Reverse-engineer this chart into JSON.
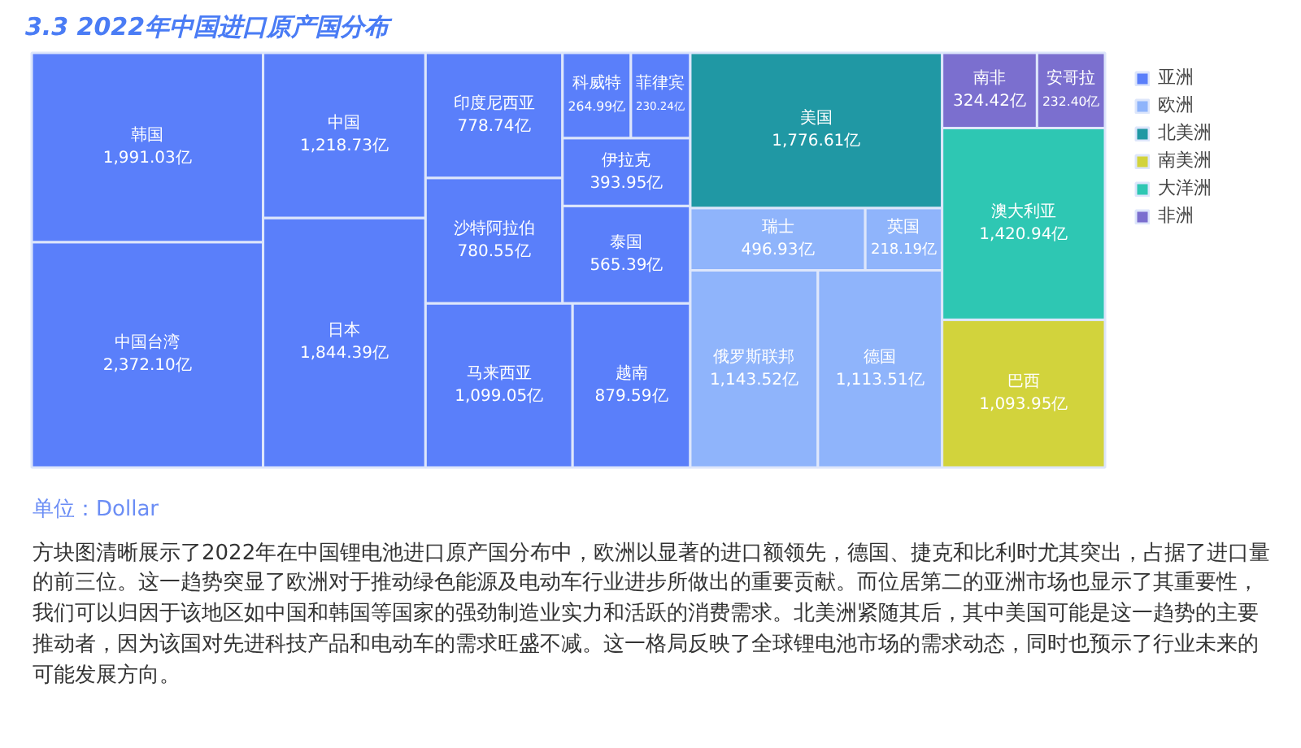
{
  "chart_data": {
    "type": "other",
    "title": "3.3 2022年中国进口原产国分布",
    "legend": "right",
    "categories": [
      "中国台湾",
      "韩国",
      "日本",
      "中国",
      "马来西亚",
      "越南",
      "沙特阿拉伯",
      "印度尼西亚",
      "泰国",
      "伊拉克",
      "科威特",
      "菲律宾",
      "俄罗斯联邦",
      "德国",
      "瑞士",
      "英国",
      "美国",
      "巴西",
      "澳大利亚",
      "南非",
      "安哥拉"
    ],
    "series": [
      {
        "name": "亚洲",
        "color": "#5a7ffa",
        "values": [
          2372.1,
          1991.03,
          1844.39,
          1218.73,
          1099.05,
          879.59,
          780.55,
          778.74,
          565.39,
          393.95,
          264.99,
          230.24,
          null,
          null,
          null,
          null,
          null,
          null,
          null,
          null,
          null
        ],
        "value_labels": [
          "2,372.10亿",
          "1,991.03亿",
          "1,844.39亿",
          "1,218.73亿",
          "1,099.05亿",
          "879.59亿",
          "780.55亿",
          "778.74亿",
          "565.39亿",
          "393.95亿",
          "264.99亿",
          "230.24亿",
          null,
          null,
          null,
          null,
          null,
          null,
          null,
          null,
          null
        ]
      },
      {
        "name": "欧洲",
        "color": "#8fb4fb",
        "values": [
          null,
          null,
          null,
          null,
          null,
          null,
          null,
          null,
          null,
          null,
          null,
          null,
          1143.52,
          1113.51,
          496.93,
          218.19,
          null,
          null,
          null,
          null,
          null
        ],
        "value_labels": [
          null,
          null,
          null,
          null,
          null,
          null,
          null,
          null,
          null,
          null,
          null,
          null,
          "1,143.52亿",
          "1,113.51亿",
          "496.93亿",
          "218.19亿",
          null,
          null,
          null,
          null,
          null
        ]
      },
      {
        "name": "北美洲",
        "color": "#2098a4",
        "values": [
          null,
          null,
          null,
          null,
          null,
          null,
          null,
          null,
          null,
          null,
          null,
          null,
          null,
          null,
          null,
          null,
          1776.61,
          null,
          null,
          null,
          null
        ],
        "value_labels": [
          null,
          null,
          null,
          null,
          null,
          null,
          null,
          null,
          null,
          null,
          null,
          null,
          null,
          null,
          null,
          null,
          "1,776.61亿",
          null,
          null,
          null,
          null
        ]
      },
      {
        "name": "南美洲",
        "color": "#d2d33c",
        "values": [
          null,
          null,
          null,
          null,
          null,
          null,
          null,
          null,
          null,
          null,
          null,
          null,
          null,
          null,
          null,
          null,
          null,
          1093.95,
          null,
          null,
          null
        ],
        "value_labels": [
          null,
          null,
          null,
          null,
          null,
          null,
          null,
          null,
          null,
          null,
          null,
          null,
          null,
          null,
          null,
          null,
          null,
          "1,093.95亿",
          null,
          null,
          null
        ]
      },
      {
        "name": "大洋洲",
        "color": "#2ec7b3",
        "values": [
          null,
          null,
          null,
          null,
          null,
          null,
          null,
          null,
          null,
          null,
          null,
          null,
          null,
          null,
          null,
          null,
          null,
          null,
          1420.94,
          null,
          null
        ],
        "value_labels": [
          null,
          null,
          null,
          null,
          null,
          null,
          null,
          null,
          null,
          null,
          null,
          null,
          null,
          null,
          null,
          null,
          null,
          null,
          "1,420.94亿",
          null,
          null
        ]
      },
      {
        "name": "非洲",
        "color": "#7b6fcf",
        "values": [
          null,
          null,
          null,
          null,
          null,
          null,
          null,
          null,
          null,
          null,
          null,
          null,
          null,
          null,
          null,
          null,
          null,
          null,
          null,
          324.42,
          232.4
        ],
        "value_labels": [
          null,
          null,
          null,
          null,
          null,
          null,
          null,
          null,
          null,
          null,
          null,
          null,
          null,
          null,
          null,
          null,
          null,
          null,
          null,
          "324.42亿",
          "232.40亿"
        ]
      }
    ],
    "annotations": [
      "单位：Dollar",
      "方块图清晰展示了2022年在中国锂电池进口原产国分布中，欧洲以显著的进口额领先，德国、捷克和比利时尤其突出，占据了进口量的前三位。这一趋势突显了欧洲对于推动绿色能源及电动车行业进步所做出的重要贡献。而位居第二的亚洲市场也显示了其重要性，我们可以归因于该地区如中国和韩国等国家的强劲制造业实力和活跃的消费需求。北美洲紧随其后，其中美国可能是这一趋势的主要推动者，因为该国对先进科技产品和电动车的需求旺盛不减。这一格局反映了全球锂电池市场的需求动态，同时也预示了行业未来的可能发展方向。"
    ]
  }
}
